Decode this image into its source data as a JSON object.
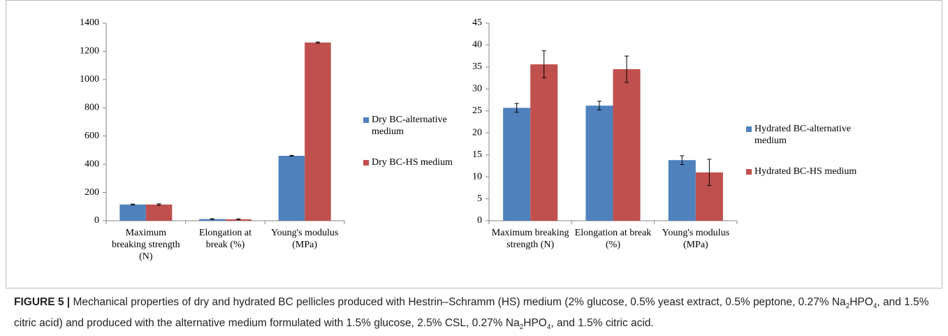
{
  "chart_data": [
    {
      "type": "bar",
      "categories": [
        "Maximum breaking strength (N)",
        "Elongation at break (%)",
        "Young's modulus (MPa)"
      ],
      "series": [
        {
          "name": "Dry BC-alternative medium",
          "color": "#4f81bd",
          "values": [
            115,
            12,
            460
          ],
          "errors": [
            3,
            2,
            3
          ]
        },
        {
          "name": "Dry BC-HS medium",
          "color": "#c0504d",
          "values": [
            115,
            10,
            1262
          ],
          "errors": [
            5,
            3,
            4
          ]
        }
      ],
      "ylim": [
        0,
        1400
      ],
      "yticks": [
        0,
        200,
        400,
        600,
        800,
        1000,
        1200,
        1400
      ],
      "legend": "right"
    },
    {
      "type": "bar",
      "categories": [
        "Maximum breaking strength (N)",
        "Elongation at break (%)",
        "Young's modulus (MPa)"
      ],
      "series": [
        {
          "name": "Hydrated BC-alternative medium",
          "color": "#4f81bd",
          "values": [
            25.7,
            26.2,
            13.8
          ],
          "errors": [
            1.0,
            1.0,
            1.0
          ]
        },
        {
          "name": "Hydrated BC-HS medium",
          "color": "#c0504d",
          "values": [
            35.6,
            34.5,
            11.0
          ],
          "errors": [
            3.1,
            3.0,
            3.0
          ]
        }
      ],
      "ylim": [
        0,
        45
      ],
      "yticks": [
        0,
        5,
        10,
        15,
        20,
        25,
        30,
        35,
        40,
        45
      ],
      "legend": "right"
    }
  ],
  "caption": {
    "label": "FIGURE 5 |",
    "parts": [
      "Mechanical properties of dry and hydrated BC pellicles produced with Hestrin–Schramm (HS) medium (2% glucose, 0.5% yeast extract, 0.5% peptone, 0.27% Na",
      "2",
      "HPO",
      "4",
      ", and 1.5% citric acid) and produced with the alternative medium formulated with 1.5% glucose, 2.5% CSL, 0.27% Na",
      "2",
      "HPO",
      "4",
      ", and 1.5% citric acid."
    ]
  }
}
